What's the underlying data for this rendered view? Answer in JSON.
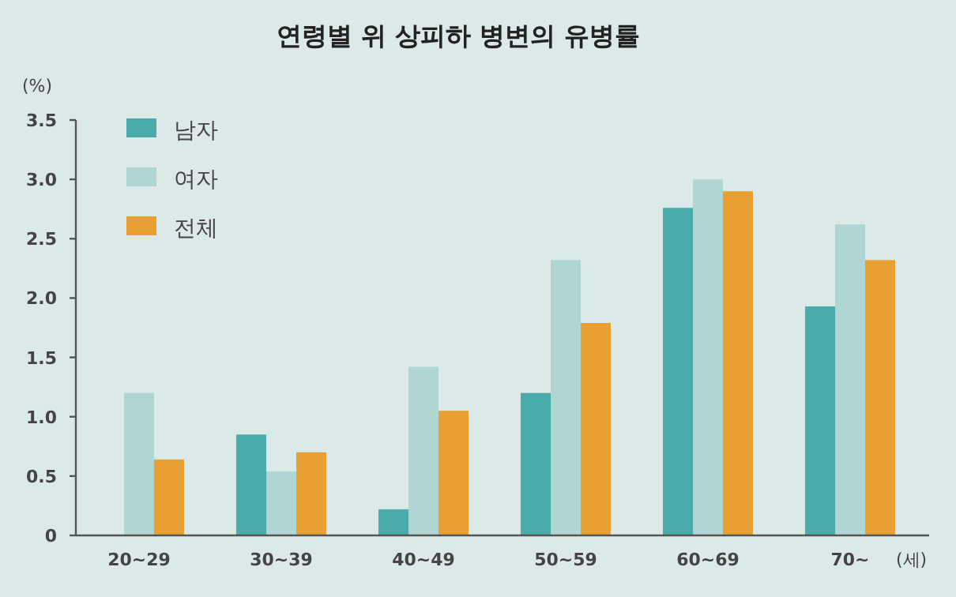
{
  "chart_data": {
    "type": "bar",
    "title": "연령별 위 상피하 병변의 유병률",
    "ylabel": "(%)",
    "xlabel": "(세)",
    "categories": [
      "20~29",
      "30~39",
      "40~49",
      "50~59",
      "60~69",
      "70~"
    ],
    "series": [
      {
        "name": "남자",
        "color": "#4aabab",
        "values": [
          null,
          0.85,
          0.22,
          1.2,
          2.76,
          1.93
        ]
      },
      {
        "name": "여자",
        "color": "#b0d6d4",
        "values": [
          1.2,
          0.54,
          1.42,
          2.32,
          3.0,
          2.62
        ]
      },
      {
        "name": "전체",
        "color": "#e9a033",
        "values": [
          0.64,
          0.7,
          1.05,
          1.79,
          2.9,
          2.32
        ]
      }
    ],
    "ylim": [
      0,
      3.5
    ],
    "yticks": [
      0,
      {
        "value": 0.5,
        "label": "0.5"
      },
      {
        "value": 1,
        "label": "1.0"
      },
      {
        "value": 1.5,
        "label": "1.5"
      },
      {
        "value": 2,
        "label": "2.0"
      },
      {
        "value": 2.5,
        "label": "2.5"
      },
      {
        "value": 3,
        "label": "3.0"
      },
      {
        "value": 3.5,
        "label": "3.5"
      }
    ],
    "grid": false,
    "legend": "top left"
  }
}
